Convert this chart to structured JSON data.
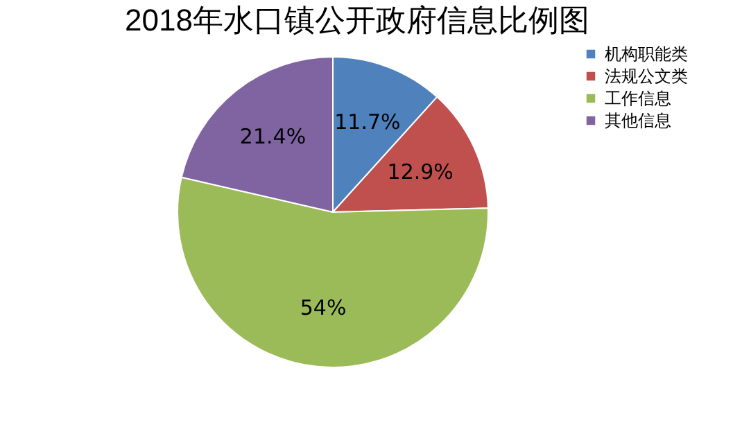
{
  "chart_data": {
    "type": "pie",
    "title": "2018年水口镇公开政府信息比例图",
    "categories": [
      "机构职能类",
      "法规公文类",
      "工作信息",
      "其他信息"
    ],
    "values": [
      11.7,
      12.9,
      54,
      21.4
    ],
    "colors": [
      "#4f81bd",
      "#c0504d",
      "#9bbb59",
      "#8064a2"
    ],
    "value_labels": [
      "11.7%",
      "12.9%",
      "54%",
      "21.4%"
    ],
    "legend": "right"
  }
}
